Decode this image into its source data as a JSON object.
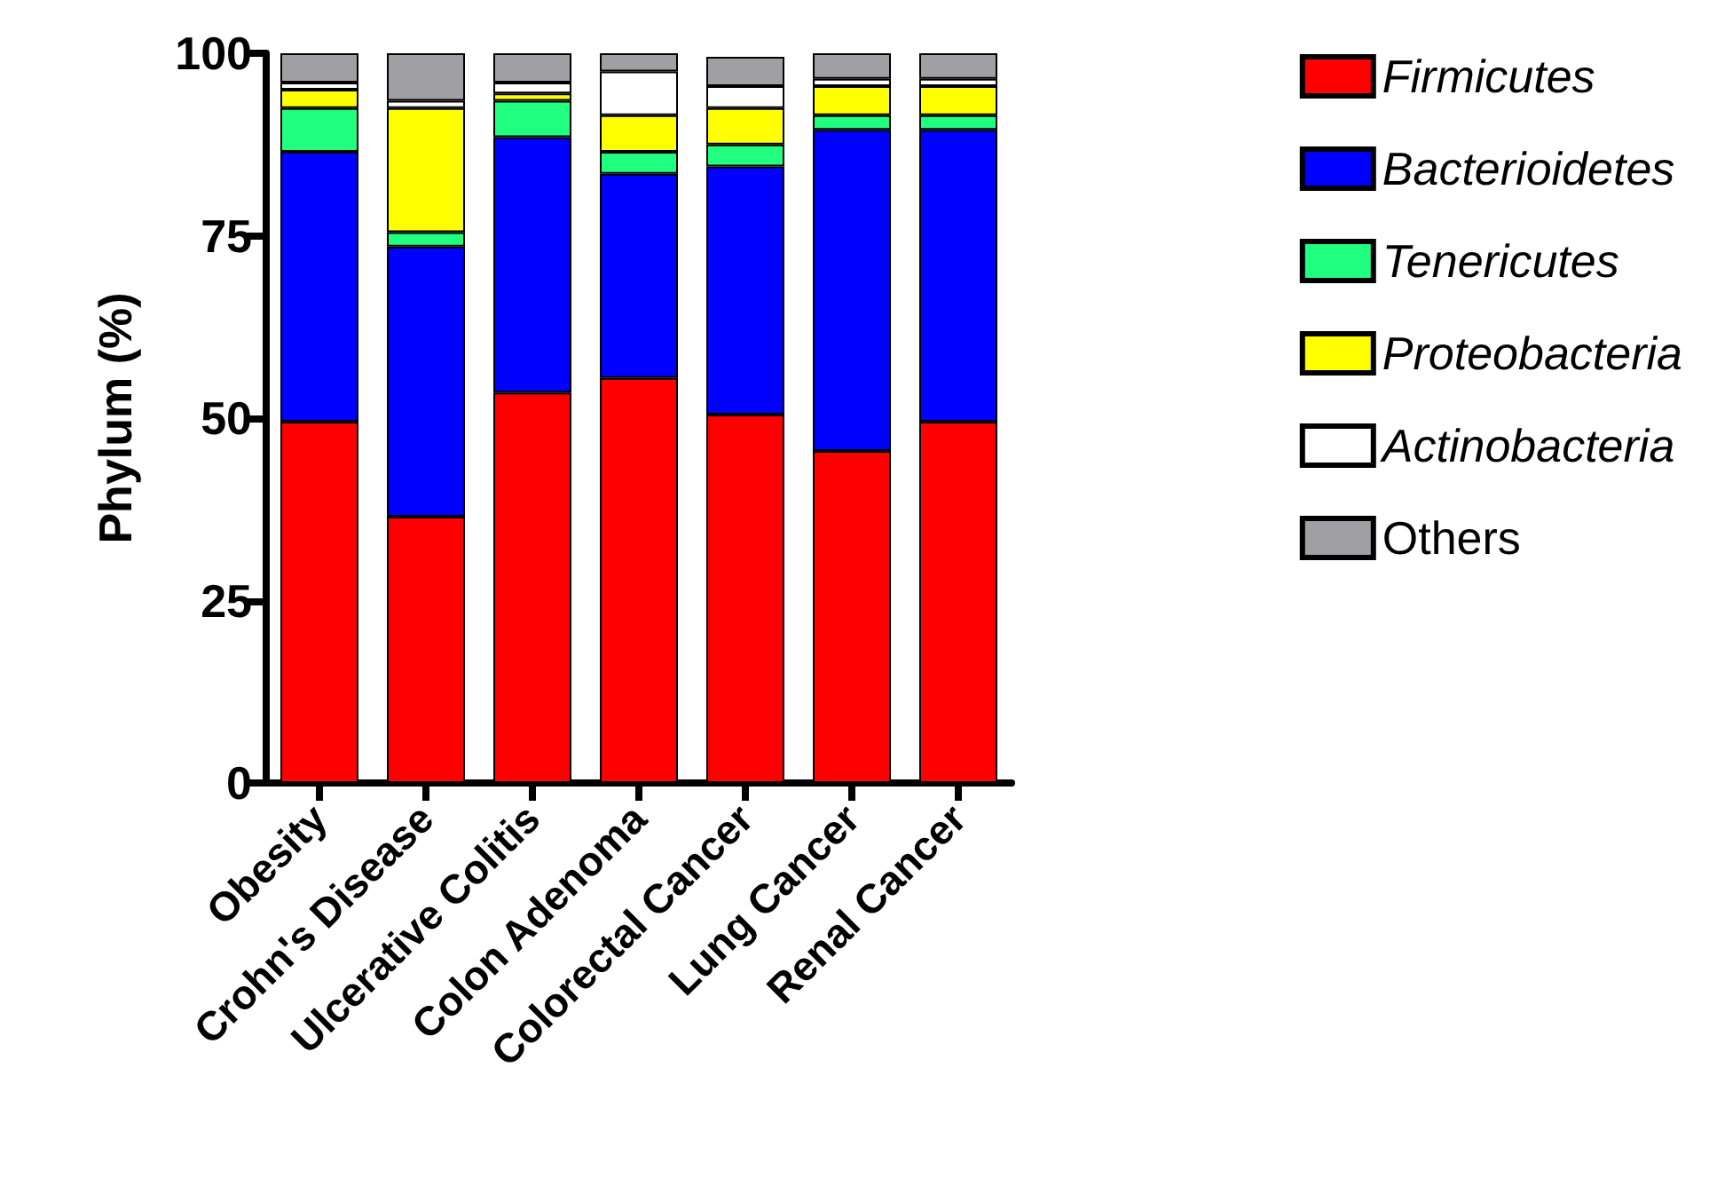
{
  "chart_data": {
    "type": "bar",
    "stacked": true,
    "ylabel": "Phylum (%)",
    "categories": [
      "Obesity",
      "Crohn's Disease",
      "Ulcerative Colitis",
      "Colon Adenoma",
      "Colorectal Cancer",
      "Lung Cancer",
      "Renal Cancer"
    ],
    "series": [
      {
        "name": "Firmicutes",
        "color": "#ff0000",
        "values": [
          49.5,
          36.5,
          53.5,
          55.5,
          50.5,
          45.5,
          49.5
        ]
      },
      {
        "name": "Bacterioidetes",
        "color": "#0000ff",
        "values": [
          37,
          37,
          35,
          28,
          34,
          44,
          40
        ]
      },
      {
        "name": "Tenericutes",
        "color": "#21ff80",
        "values": [
          6,
          2,
          5,
          3,
          3,
          2,
          2
        ]
      },
      {
        "name": "Proteobacteria",
        "color": "#ffff00",
        "values": [
          2.5,
          17,
          1,
          5,
          5,
          4,
          4
        ]
      },
      {
        "name": "Actinobacteria",
        "color": "#ffffff",
        "values": [
          1,
          1,
          1.5,
          6,
          3,
          1,
          1
        ]
      },
      {
        "name": "Others",
        "color": "#a0a0a4",
        "values": [
          4,
          6.5,
          4,
          2.5,
          4,
          3.5,
          3.5
        ]
      }
    ],
    "ylim": [
      0,
      100
    ],
    "yticks": [
      0,
      25,
      50,
      75,
      100
    ],
    "grid": false,
    "legend": "right"
  }
}
